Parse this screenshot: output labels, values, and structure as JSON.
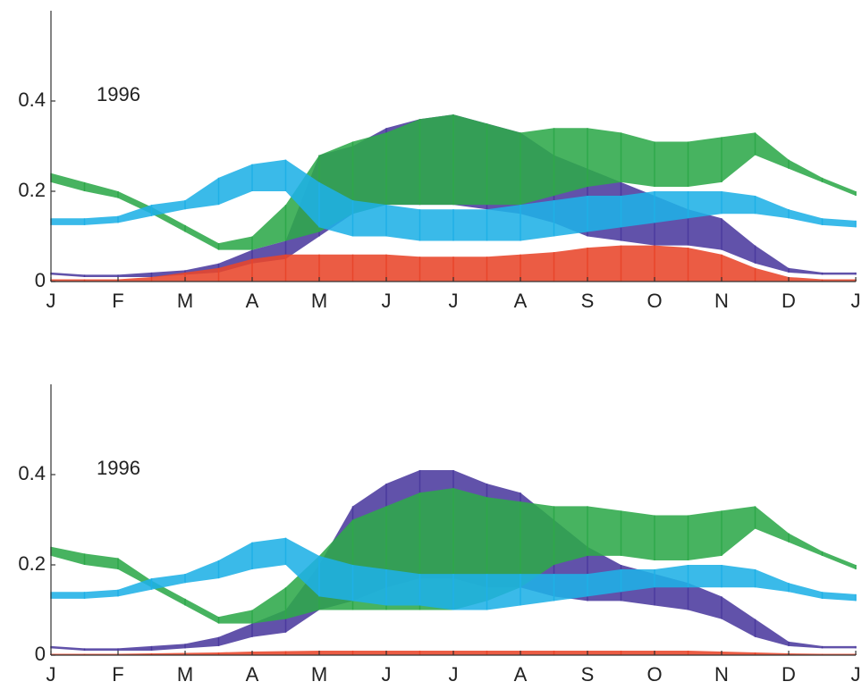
{
  "chart_data": [
    {
      "type": "band",
      "annotation": "1996",
      "categories": [
        "J",
        null,
        "F",
        null,
        "M",
        null,
        "A",
        null,
        "M",
        null,
        "J",
        null,
        "J",
        null,
        "A",
        null,
        "S",
        null,
        "O",
        null,
        "N",
        null,
        "D",
        null,
        "J"
      ],
      "ylim": [
        0,
        0.6
      ],
      "yticks": [
        0,
        0.2,
        0.4
      ],
      "grid": false,
      "series": [
        {
          "color": "#4b3a9e",
          "low": [
            0.015,
            0.01,
            0.01,
            0.01,
            0.015,
            0.02,
            0.04,
            0.05,
            0.1,
            0.15,
            0.17,
            0.17,
            0.17,
            0.16,
            0.15,
            0.13,
            0.1,
            0.09,
            0.08,
            0.08,
            0.07,
            0.04,
            0.02,
            0.015,
            0.015
          ],
          "high": [
            0.02,
            0.015,
            0.015,
            0.02,
            0.025,
            0.04,
            0.07,
            0.09,
            0.28,
            0.3,
            0.34,
            0.36,
            0.37,
            0.35,
            0.33,
            0.28,
            0.25,
            0.22,
            0.19,
            0.16,
            0.14,
            0.08,
            0.03,
            0.02,
            0.02
          ]
        },
        {
          "color": "#2ea84a",
          "low": [
            0.22,
            0.2,
            0.185,
            0.15,
            0.11,
            0.07,
            0.07,
            0.09,
            0.11,
            0.15,
            0.17,
            0.17,
            0.17,
            0.17,
            0.17,
            0.19,
            0.21,
            0.22,
            0.21,
            0.21,
            0.22,
            0.28,
            0.25,
            0.22,
            0.19
          ],
          "high": [
            0.24,
            0.22,
            0.2,
            0.165,
            0.125,
            0.085,
            0.1,
            0.17,
            0.28,
            0.31,
            0.33,
            0.36,
            0.37,
            0.35,
            0.33,
            0.34,
            0.34,
            0.33,
            0.31,
            0.31,
            0.32,
            0.33,
            0.27,
            0.23,
            0.2
          ]
        },
        {
          "color": "#e8452a",
          "low": [
            0,
            0,
            0,
            0,
            0,
            0,
            0,
            0,
            0,
            0,
            0,
            0,
            0,
            0,
            0,
            0,
            0,
            0,
            0,
            0,
            0,
            0,
            0,
            0,
            0
          ],
          "high": [
            0.005,
            0.005,
            0.005,
            0.01,
            0.02,
            0.03,
            0.05,
            0.06,
            0.06,
            0.06,
            0.06,
            0.055,
            0.055,
            0.055,
            0.06,
            0.065,
            0.075,
            0.08,
            0.08,
            0.075,
            0.06,
            0.03,
            0.01,
            0.005,
            0.005
          ]
        },
        {
          "color": "#1fb0e6",
          "low": [
            0.125,
            0.125,
            0.13,
            0.145,
            0.16,
            0.17,
            0.2,
            0.2,
            0.12,
            0.1,
            0.1,
            0.09,
            0.09,
            0.09,
            0.09,
            0.1,
            0.11,
            0.12,
            0.13,
            0.14,
            0.15,
            0.15,
            0.14,
            0.125,
            0.12
          ],
          "high": [
            0.14,
            0.14,
            0.145,
            0.17,
            0.18,
            0.23,
            0.26,
            0.27,
            0.22,
            0.18,
            0.17,
            0.16,
            0.16,
            0.16,
            0.17,
            0.18,
            0.19,
            0.19,
            0.2,
            0.2,
            0.2,
            0.19,
            0.16,
            0.14,
            0.135
          ]
        }
      ]
    },
    {
      "type": "band",
      "annotation": "1996",
      "categories": [
        "J",
        null,
        "F",
        null,
        "M",
        null,
        "A",
        null,
        "M",
        null,
        "J",
        null,
        "J",
        null,
        "A",
        null,
        "S",
        null,
        "O",
        null,
        "N",
        null,
        "D",
        null,
        "J"
      ],
      "ylim": [
        0,
        0.6
      ],
      "yticks": [
        0,
        0.2,
        0.4
      ],
      "grid": false,
      "series": [
        {
          "color": "#4b3a9e",
          "low": [
            0.015,
            0.01,
            0.01,
            0.01,
            0.015,
            0.02,
            0.04,
            0.05,
            0.1,
            0.12,
            0.15,
            0.17,
            0.17,
            0.15,
            0.15,
            0.13,
            0.12,
            0.12,
            0.11,
            0.1,
            0.08,
            0.04,
            0.02,
            0.015,
            0.015
          ],
          "high": [
            0.02,
            0.015,
            0.015,
            0.02,
            0.025,
            0.04,
            0.07,
            0.1,
            0.2,
            0.33,
            0.38,
            0.41,
            0.41,
            0.38,
            0.36,
            0.3,
            0.24,
            0.2,
            0.18,
            0.16,
            0.13,
            0.08,
            0.03,
            0.02,
            0.02
          ]
        },
        {
          "color": "#2ea84a",
          "low": [
            0.22,
            0.2,
            0.19,
            0.15,
            0.11,
            0.07,
            0.07,
            0.08,
            0.1,
            0.1,
            0.1,
            0.1,
            0.1,
            0.12,
            0.15,
            0.2,
            0.22,
            0.22,
            0.21,
            0.21,
            0.22,
            0.28,
            0.25,
            0.22,
            0.19
          ],
          "high": [
            0.24,
            0.225,
            0.215,
            0.165,
            0.125,
            0.085,
            0.1,
            0.15,
            0.22,
            0.3,
            0.33,
            0.36,
            0.37,
            0.35,
            0.34,
            0.33,
            0.33,
            0.32,
            0.31,
            0.31,
            0.32,
            0.33,
            0.27,
            0.23,
            0.2
          ]
        },
        {
          "color": "#e8452a",
          "low": [
            0,
            0,
            0,
            0,
            0,
            0,
            0,
            0,
            0,
            0,
            0,
            0,
            0,
            0,
            0,
            0,
            0,
            0,
            0,
            0,
            0,
            0,
            0,
            0,
            0
          ],
          "high": [
            0.003,
            0.003,
            0.003,
            0.004,
            0.005,
            0.006,
            0.008,
            0.009,
            0.01,
            0.01,
            0.01,
            0.01,
            0.01,
            0.01,
            0.01,
            0.01,
            0.01,
            0.01,
            0.01,
            0.01,
            0.008,
            0.006,
            0.004,
            0.003,
            0.003
          ]
        },
        {
          "color": "#1fb0e6",
          "low": [
            0.125,
            0.125,
            0.13,
            0.145,
            0.16,
            0.17,
            0.19,
            0.2,
            0.13,
            0.12,
            0.11,
            0.11,
            0.1,
            0.1,
            0.11,
            0.12,
            0.13,
            0.14,
            0.15,
            0.15,
            0.15,
            0.15,
            0.14,
            0.125,
            0.12
          ],
          "high": [
            0.14,
            0.14,
            0.145,
            0.17,
            0.18,
            0.21,
            0.25,
            0.26,
            0.22,
            0.2,
            0.19,
            0.18,
            0.18,
            0.18,
            0.18,
            0.18,
            0.18,
            0.19,
            0.19,
            0.2,
            0.2,
            0.19,
            0.16,
            0.14,
            0.135
          ]
        }
      ]
    }
  ]
}
